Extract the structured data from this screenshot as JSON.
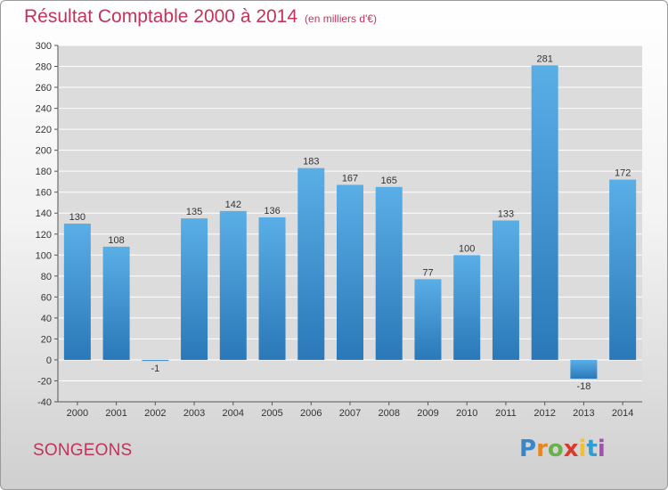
{
  "header": {
    "title": "Résultat Comptable 2000 à 2014",
    "unit": "(en milliers d'€)"
  },
  "footer": {
    "commune": "SONGEONS",
    "logo_text": "Proxiti",
    "logo_colors": [
      "#3a86c8",
      "#e8851e",
      "#6ab04c",
      "#d93a2b",
      "#f2c12e",
      "#2e9fd4",
      "#a14fb0"
    ]
  },
  "colors": {
    "bar_top": "#5aaee6",
    "bar_bottom": "#2a78b8",
    "axis": "#555555",
    "grid": "#ffffff",
    "plot_bg": "#dcdcdc",
    "text": "#333333"
  },
  "chart_data": {
    "type": "bar",
    "title": "Résultat Comptable 2000 à 2014",
    "ylabel": "en milliers d'€",
    "xlabel": "",
    "ylim": [
      -40,
      300
    ],
    "ytick_step": 20,
    "grid": true,
    "categories": [
      "2000",
      "2001",
      "2002",
      "2003",
      "2004",
      "2005",
      "2006",
      "2007",
      "2008",
      "2009",
      "2010",
      "2011",
      "2012",
      "2013",
      "2014"
    ],
    "values": [
      130,
      108,
      -1,
      135,
      142,
      136,
      183,
      167,
      165,
      77,
      100,
      133,
      281,
      -18,
      172
    ]
  }
}
